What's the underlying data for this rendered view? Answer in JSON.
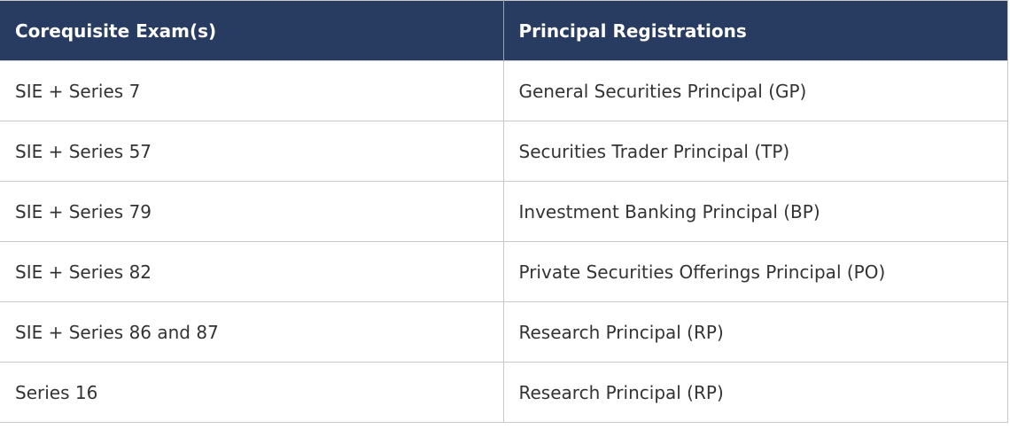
{
  "table": {
    "headers": [
      "Corequisite Exam(s)",
      "Principal Registrations"
    ],
    "rows": [
      [
        "SIE + Series 7",
        "General Securities Principal (GP)"
      ],
      [
        "SIE + Series 57",
        "Securities Trader Principal (TP)"
      ],
      [
        "SIE + Series 79",
        "Investment Banking Principal (BP)"
      ],
      [
        "SIE + Series 82",
        "Private Securities Offerings Principal (PO)"
      ],
      [
        "SIE + Series 86 and 87",
        "Research Principal (RP)"
      ],
      [
        "Series 16",
        "Research Principal (RP)"
      ]
    ]
  },
  "colors": {
    "header_bg": "#283c62",
    "header_text": "#ffffff",
    "body_text": "#333333",
    "border": "#c8c8c8"
  }
}
